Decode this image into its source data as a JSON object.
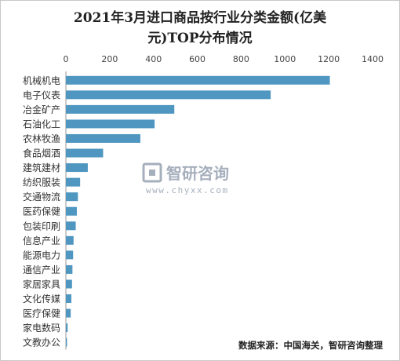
{
  "chart_data": {
    "type": "bar",
    "orientation": "horizontal",
    "title_line1": "2021年3月进口商品按行业分类金额(亿美",
    "title_line2": "元)TOP分布情况",
    "categories": [
      "机械机电",
      "电子仪表",
      "冶金矿产",
      "石油化工",
      "农林牧渔",
      "食品烟酒",
      "建筑建材",
      "纺织服装",
      "交通物流",
      "医药保健",
      "包装印刷",
      "信息产业",
      "能源电力",
      "通信产业",
      "家居家具",
      "文化传媒",
      "医疗保健",
      "家电数码",
      "文教办公"
    ],
    "values": [
      1205,
      935,
      495,
      405,
      340,
      170,
      100,
      65,
      55,
      50,
      45,
      35,
      33,
      30,
      28,
      25,
      22,
      8,
      5
    ],
    "ticks": [
      0,
      200,
      400,
      600,
      800,
      1000,
      1200,
      1400
    ],
    "xlim": [
      0,
      1400
    ],
    "axis_position": "top",
    "bar_color": "#4f97c1",
    "grid": false
  },
  "watermark": {
    "brand": "智研咨询",
    "url": "www.chyxx.com"
  },
  "source": "数据来源：中国海关，智研咨询整理"
}
